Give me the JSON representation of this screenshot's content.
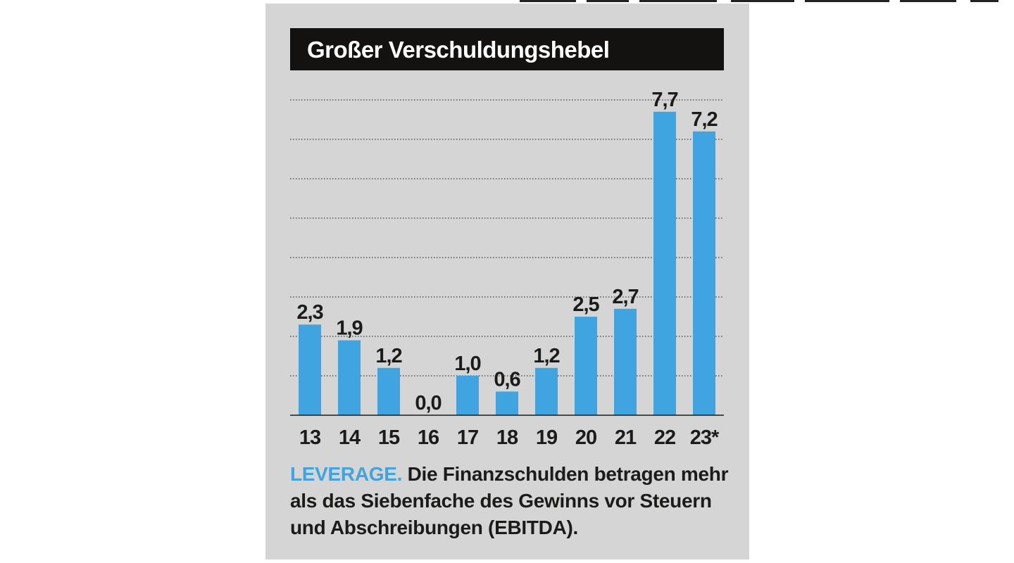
{
  "chart_data": {
    "type": "bar",
    "title": "Großer Verschuldungshebel",
    "categories": [
      "13",
      "14",
      "15",
      "16",
      "17",
      "18",
      "19",
      "20",
      "21",
      "22",
      "23*"
    ],
    "values": [
      2.3,
      1.9,
      1.2,
      0.0,
      1.0,
      0.6,
      1.2,
      2.5,
      2.7,
      7.7,
      7.2
    ],
    "value_labels": [
      "2,3",
      "1,9",
      "1,2",
      "0,0",
      "1,0",
      "0,6",
      "1,2",
      "2,5",
      "2,7",
      "7,7",
      "7,2"
    ],
    "xlabel": "",
    "ylabel": "",
    "ylim": [
      0,
      8
    ],
    "grid": "dotted horizontal lines every 1 unit",
    "bar_color": "#3fa4df",
    "legend": "none"
  },
  "caption": {
    "lead": "LEVERAGE.",
    "text": " Die Finanzschulden betragen mehr als das Siebenfache des Gewinns vor Steuern und Abschreibungen (EBITDA)."
  },
  "colors": {
    "panel_background": "#d4d5d4",
    "title_background": "#141210",
    "title_text": "#ffffff",
    "accent": "#3fa4df",
    "text": "#1c1b1a"
  }
}
